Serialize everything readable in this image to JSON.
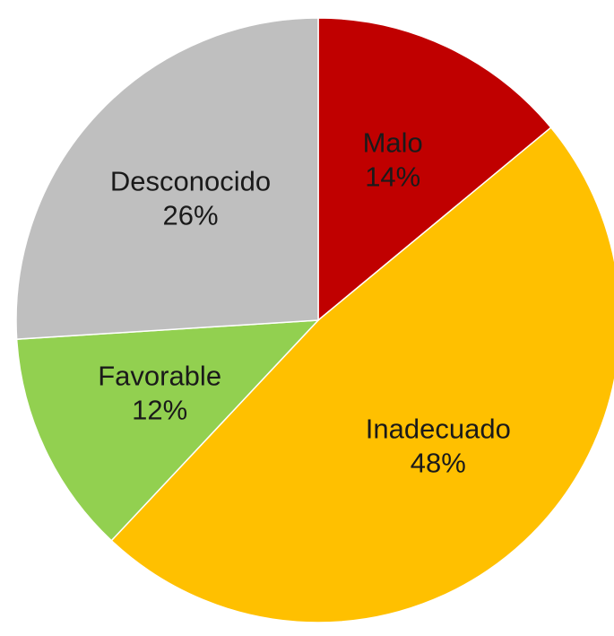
{
  "chart_data": {
    "type": "pie",
    "start_angle_deg": 0,
    "direction": "clockwise",
    "slices": [
      {
        "label": "Malo",
        "value": 14,
        "value_label": "14%",
        "color": "#C00000"
      },
      {
        "label": "Inadecuado",
        "value": 48,
        "value_label": "48%",
        "color": "#FFC000"
      },
      {
        "label": "Favorable",
        "value": 12,
        "value_label": "12%",
        "color": "#92D050"
      },
      {
        "label": "Desconocido",
        "value": 26,
        "value_label": "26%",
        "color": "#BFBFBF"
      }
    ]
  }
}
